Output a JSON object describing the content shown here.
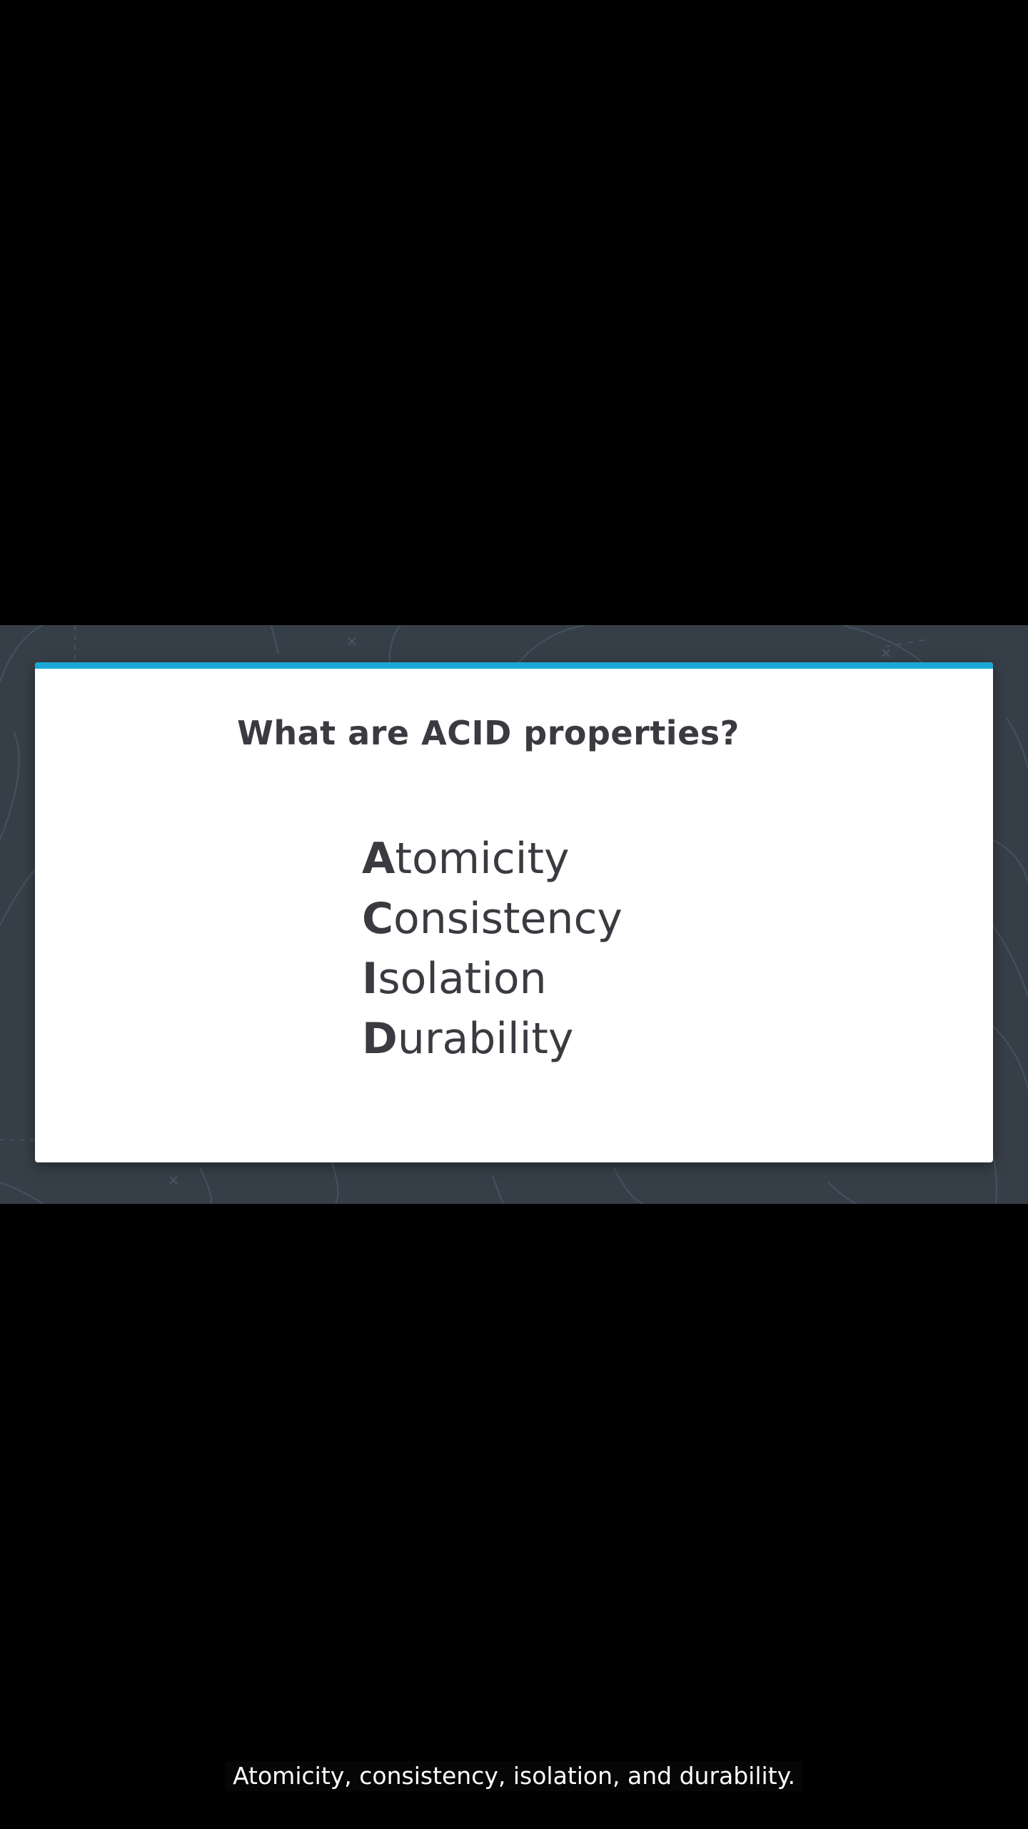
{
  "colors": {
    "letterbox": "#000000",
    "frame_background": "#363e47",
    "slide_background": "#ffffff",
    "slide_accent": "#1aa9d6",
    "slide_text": "#3a3a40",
    "caption_text": "#ffffff"
  },
  "slide": {
    "title": "What are ACID properties?",
    "items": [
      {
        "letter": "A",
        "rest": "tomicity"
      },
      {
        "letter": "C",
        "rest": "onsistency"
      },
      {
        "letter": "I",
        "rest": "solation"
      },
      {
        "letter": "D",
        "rest": "urability"
      }
    ]
  },
  "caption": {
    "text": "Atomicity, consistency, isolation, and durability."
  }
}
